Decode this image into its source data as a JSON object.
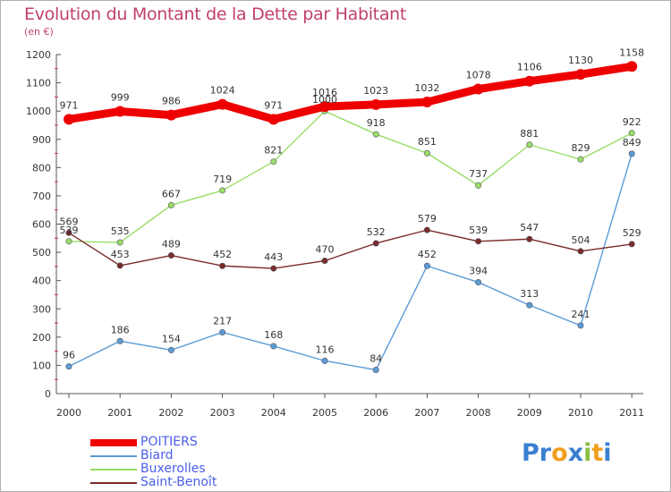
{
  "chart_data": {
    "type": "line",
    "title": "Evolution du Montant de la Dette par Habitant",
    "subtitle": "(en €)",
    "categories": [
      "2000",
      "2001",
      "2002",
      "2003",
      "2004",
      "2005",
      "2006",
      "2007",
      "2008",
      "2009",
      "2010",
      "2011"
    ],
    "ylim": [
      0,
      1200
    ],
    "yticks": [
      0,
      100,
      200,
      300,
      400,
      500,
      600,
      700,
      800,
      900,
      1000,
      1100,
      1200
    ],
    "grid": false,
    "legend_position": "bottom-left",
    "series": [
      {
        "name": "POITIERS",
        "color": "#ee0000",
        "values": [
          971,
          999,
          986,
          1024,
          971,
          1016,
          1023,
          1032,
          1078,
          1106,
          1130,
          1158
        ]
      },
      {
        "name": "Biard",
        "color": "#5b9bd5",
        "values": [
          96,
          186,
          154,
          217,
          168,
          116,
          84,
          452,
          394,
          313,
          241,
          849
        ]
      },
      {
        "name": "Buxerolles",
        "color": "#99dd66",
        "values": [
          539,
          535,
          667,
          719,
          821,
          1000,
          918,
          851,
          737,
          881,
          829,
          922
        ]
      },
      {
        "name": "Saint-Benoît",
        "color": "#7a2b2b",
        "values": [
          569,
          453,
          489,
          452,
          443,
          470,
          532,
          579,
          539,
          547,
          504,
          529
        ]
      }
    ]
  },
  "logo": {
    "text": "Proxiti",
    "letters": [
      {
        "ch": "P",
        "color": "#3a7fd0"
      },
      {
        "ch": "r",
        "color": "#3a7fd0"
      },
      {
        "ch": "o",
        "color": "#f0a020"
      },
      {
        "ch": "x",
        "color": "#3a7fd0"
      },
      {
        "ch": "i",
        "color": "#8ac040"
      },
      {
        "ch": "t",
        "color": "#f0a020"
      },
      {
        "ch": "i",
        "color": "#3a7fd0"
      }
    ]
  }
}
